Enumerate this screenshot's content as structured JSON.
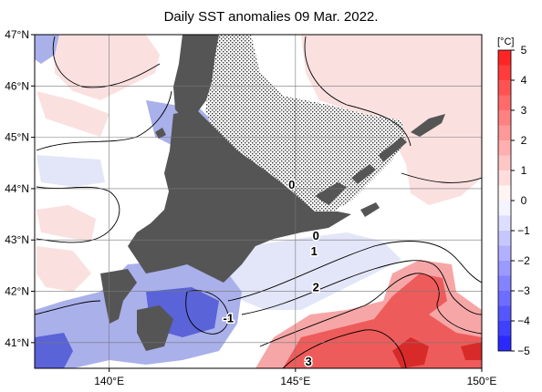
{
  "title": "Daily SST anomalies 09 Mar. 2022.",
  "map": {
    "lon_range": [
      138,
      150
    ],
    "lat_range": [
      40.5,
      47
    ],
    "lon_ticks": [
      {
        "value": 140,
        "label": "140°E"
      },
      {
        "value": 145,
        "label": "145°E"
      },
      {
        "value": 150,
        "label": "150°E"
      }
    ],
    "lat_ticks": [
      {
        "value": 47,
        "label": "47°N"
      },
      {
        "value": 46,
        "label": "46°N"
      },
      {
        "value": 45,
        "label": "45°N"
      },
      {
        "value": 44,
        "label": "44°N"
      },
      {
        "value": 43,
        "label": "43°N"
      },
      {
        "value": 42,
        "label": "42°N"
      },
      {
        "value": 41,
        "label": "41°N"
      }
    ],
    "gridlines": true,
    "contour_labels": [
      {
        "text": "0",
        "lon": 144.9,
        "lat": 44.0
      },
      {
        "text": "0",
        "lon": 145.55,
        "lat": 43.0
      },
      {
        "text": "1",
        "lon": 145.5,
        "lat": 42.7
      },
      {
        "text": "2",
        "lon": 145.55,
        "lat": 42.0
      },
      {
        "text": "-1",
        "lon": 143.2,
        "lat": 41.4
      },
      {
        "text": "3",
        "lon": 145.35,
        "lat": 40.55
      }
    ],
    "colors": {
      "land": "#555555",
      "ice_hatch": "#333333",
      "warm_1": "#fbe0e0",
      "warm_2": "#f6a6a6",
      "warm_3": "#ee5b5b",
      "cool_1": "#e3e6f8",
      "cool_2": "#a9b0ea",
      "cool_3": "#5a63d8"
    }
  },
  "colorbar": {
    "unit": "[°C]",
    "range": [
      -5,
      5
    ],
    "tick_labels": [
      "5",
      "4",
      "3",
      "2",
      "1",
      "0",
      "−1",
      "−2",
      "−3",
      "−4",
      "−5"
    ],
    "tick_values": [
      5,
      4,
      3,
      2,
      1,
      0,
      -1,
      -2,
      -3,
      -4,
      -5
    ]
  }
}
